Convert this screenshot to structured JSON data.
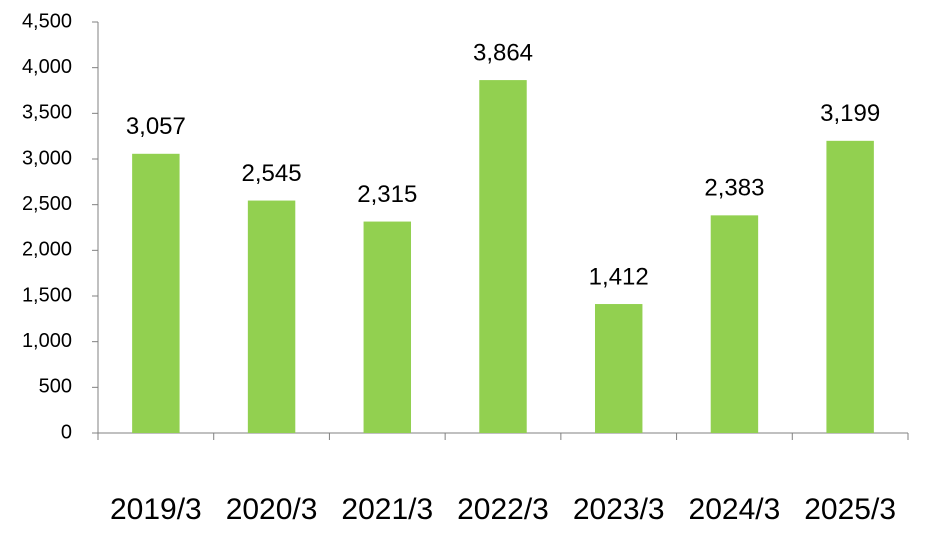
{
  "chart_data": {
    "type": "bar",
    "categories": [
      "2019/3",
      "2020/3",
      "2021/3",
      "2022/3",
      "2023/3",
      "2024/3",
      "2025/3"
    ],
    "values": [
      3057,
      2545,
      2315,
      3864,
      1412,
      2383,
      3199
    ],
    "value_labels": [
      "3,057",
      "2,545",
      "2,315",
      "3,864",
      "1,412",
      "2,383",
      "3,199"
    ],
    "color": "#92d050",
    "ylim": [
      0,
      4500
    ],
    "yticks": [
      0,
      500,
      {
        "value": 1000,
        "label": "1,000"
      },
      {
        "value": 1500,
        "label": "1,500"
      },
      {
        "value": 2000,
        "label": "2,000"
      },
      {
        "value": 2500,
        "label": "2,500"
      },
      {
        "value": 3000,
        "label": "3,000"
      },
      {
        "value": 3500,
        "label": "3,500"
      },
      {
        "value": 4000,
        "label": "4,000"
      },
      {
        "value": 4500,
        "label": "4,500"
      }
    ],
    "grid": false
  }
}
